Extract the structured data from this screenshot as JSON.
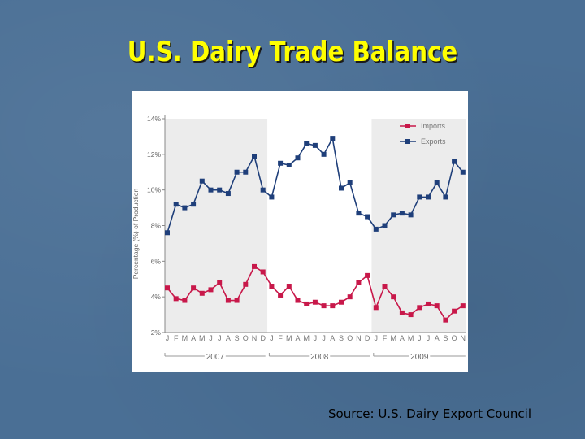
{
  "slide": {
    "title": "U.S. Dairy Trade Balance",
    "source": "Source: U.S. Dairy Export Council"
  },
  "colors": {
    "imports": "#c8184a",
    "exports": "#1f3f7a",
    "shade": "#ececec",
    "title": "#ffff00"
  },
  "chart_data": {
    "type": "line",
    "title": "",
    "xlabel": "",
    "ylabel": "Percentage (%) of Production",
    "ylim": [
      2,
      14
    ],
    "yticks": [
      "2%",
      "4%",
      "6%",
      "8%",
      "10%",
      "12%",
      "14%"
    ],
    "month_labels": [
      "J",
      "F",
      "M",
      "A",
      "M",
      "J",
      "J",
      "A",
      "S",
      "O",
      "N",
      "D",
      "J",
      "F",
      "M",
      "A",
      "M",
      "J",
      "J",
      "A",
      "S",
      "O",
      "N",
      "D",
      "J",
      "F",
      "M",
      "A",
      "M",
      "J",
      "J",
      "A",
      "S",
      "O",
      "N"
    ],
    "years": [
      "2007",
      "2008",
      "2009"
    ],
    "legend_position": "top-right",
    "grid": false,
    "series": [
      {
        "name": "Imports",
        "values": [
          4.5,
          3.9,
          3.8,
          4.5,
          4.2,
          4.4,
          4.8,
          3.8,
          3.8,
          4.7,
          5.7,
          5.4,
          4.6,
          4.1,
          4.6,
          3.8,
          3.6,
          3.7,
          3.5,
          3.5,
          3.7,
          4.0,
          4.8,
          5.2,
          3.4,
          4.6,
          4.0,
          3.1,
          3.0,
          3.4,
          3.6,
          3.5,
          2.7,
          3.2,
          3.5
        ]
      },
      {
        "name": "Exports",
        "values": [
          7.6,
          9.2,
          9.0,
          9.2,
          10.5,
          10.0,
          10.0,
          9.8,
          11.0,
          11.0,
          11.9,
          10.0,
          9.6,
          11.5,
          11.4,
          11.8,
          12.6,
          12.5,
          12.0,
          12.9,
          10.1,
          10.4,
          8.7,
          8.5,
          7.8,
          8.0,
          8.6,
          8.7,
          8.6,
          9.6,
          9.6,
          10.4,
          9.6,
          11.6,
          11.0
        ]
      }
    ]
  }
}
